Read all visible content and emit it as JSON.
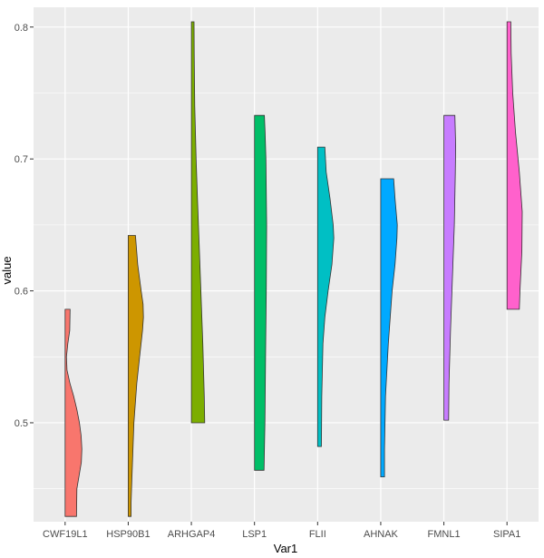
{
  "chart_data": {
    "type": "violin",
    "style": "half-violin",
    "xlabel": "Var1",
    "ylabel": "value",
    "ylim": [
      0.425,
      0.815
    ],
    "y_ticks": [
      0.5,
      0.6,
      0.7,
      0.8
    ],
    "y_tick_labels": [
      "0.5",
      "0.6",
      "0.7",
      "0.8"
    ],
    "grid": true,
    "legend": "none",
    "panel_background": "#EBEBEB",
    "categories": [
      "CWF19L1",
      "HSP90B1",
      "ARHGAP4",
      "LSP1",
      "FLII",
      "AHNAK",
      "FMNL1",
      "SIPA1"
    ],
    "series": [
      {
        "category": "CWF19L1",
        "color": "#F8766D",
        "min": 0.429,
        "max": 0.586,
        "density": [
          [
            0.429,
            0.6
          ],
          [
            0.45,
            0.62
          ],
          [
            0.47,
            0.85
          ],
          [
            0.48,
            0.88
          ],
          [
            0.49,
            0.84
          ],
          [
            0.5,
            0.75
          ],
          [
            0.51,
            0.62
          ],
          [
            0.52,
            0.45
          ],
          [
            0.53,
            0.25
          ],
          [
            0.54,
            0.1
          ],
          [
            0.55,
            0.07
          ],
          [
            0.56,
            0.14
          ],
          [
            0.57,
            0.24
          ],
          [
            0.586,
            0.26
          ]
        ]
      },
      {
        "category": "HSP90B1",
        "color": "#CD9600",
        "min": 0.429,
        "max": 0.642,
        "density": [
          [
            0.429,
            0.15
          ],
          [
            0.44,
            0.15
          ],
          [
            0.46,
            0.2
          ],
          [
            0.5,
            0.3
          ],
          [
            0.53,
            0.45
          ],
          [
            0.55,
            0.6
          ],
          [
            0.57,
            0.75
          ],
          [
            0.58,
            0.8
          ],
          [
            0.59,
            0.78
          ],
          [
            0.6,
            0.68
          ],
          [
            0.62,
            0.5
          ],
          [
            0.642,
            0.38
          ]
        ]
      },
      {
        "category": "ARHGAP4",
        "color": "#7CAE00",
        "min": 0.5,
        "max": 0.804,
        "density": [
          [
            0.5,
            0.7
          ],
          [
            0.52,
            0.68
          ],
          [
            0.56,
            0.6
          ],
          [
            0.62,
            0.45
          ],
          [
            0.67,
            0.32
          ],
          [
            0.7,
            0.25
          ],
          [
            0.74,
            0.18
          ],
          [
            0.78,
            0.15
          ],
          [
            0.804,
            0.14
          ]
        ]
      },
      {
        "category": "LSP1",
        "color": "#00BE67",
        "min": 0.464,
        "max": 0.733,
        "density": [
          [
            0.464,
            0.5
          ],
          [
            0.5,
            0.55
          ],
          [
            0.55,
            0.58
          ],
          [
            0.6,
            0.62
          ],
          [
            0.65,
            0.64
          ],
          [
            0.7,
            0.6
          ],
          [
            0.72,
            0.56
          ],
          [
            0.733,
            0.52
          ]
        ]
      },
      {
        "category": "FLII",
        "color": "#00BFC4",
        "min": 0.482,
        "max": 0.709,
        "density": [
          [
            0.482,
            0.2
          ],
          [
            0.52,
            0.22
          ],
          [
            0.56,
            0.28
          ],
          [
            0.58,
            0.38
          ],
          [
            0.6,
            0.55
          ],
          [
            0.62,
            0.75
          ],
          [
            0.64,
            0.85
          ],
          [
            0.65,
            0.82
          ],
          [
            0.67,
            0.65
          ],
          [
            0.69,
            0.45
          ],
          [
            0.709,
            0.38
          ]
        ]
      },
      {
        "category": "AHNAK",
        "color": "#00A9FF",
        "min": 0.459,
        "max": 0.685,
        "density": [
          [
            0.459,
            0.2
          ],
          [
            0.48,
            0.2
          ],
          [
            0.52,
            0.25
          ],
          [
            0.56,
            0.4
          ],
          [
            0.6,
            0.6
          ],
          [
            0.62,
            0.75
          ],
          [
            0.64,
            0.85
          ],
          [
            0.65,
            0.87
          ],
          [
            0.67,
            0.75
          ],
          [
            0.685,
            0.68
          ]
        ]
      },
      {
        "category": "FMNL1",
        "color": "#C77CFF",
        "min": 0.502,
        "max": 0.733,
        "density": [
          [
            0.502,
            0.25
          ],
          [
            0.53,
            0.27
          ],
          [
            0.57,
            0.35
          ],
          [
            0.61,
            0.45
          ],
          [
            0.65,
            0.55
          ],
          [
            0.69,
            0.6
          ],
          [
            0.71,
            0.62
          ],
          [
            0.733,
            0.58
          ]
        ]
      },
      {
        "category": "SIPA1",
        "color": "#FF61CC",
        "min": 0.586,
        "max": 0.804,
        "density": [
          [
            0.586,
            0.65
          ],
          [
            0.6,
            0.68
          ],
          [
            0.63,
            0.78
          ],
          [
            0.66,
            0.8
          ],
          [
            0.69,
            0.65
          ],
          [
            0.72,
            0.45
          ],
          [
            0.75,
            0.3
          ],
          [
            0.78,
            0.22
          ],
          [
            0.804,
            0.2
          ]
        ]
      }
    ]
  }
}
